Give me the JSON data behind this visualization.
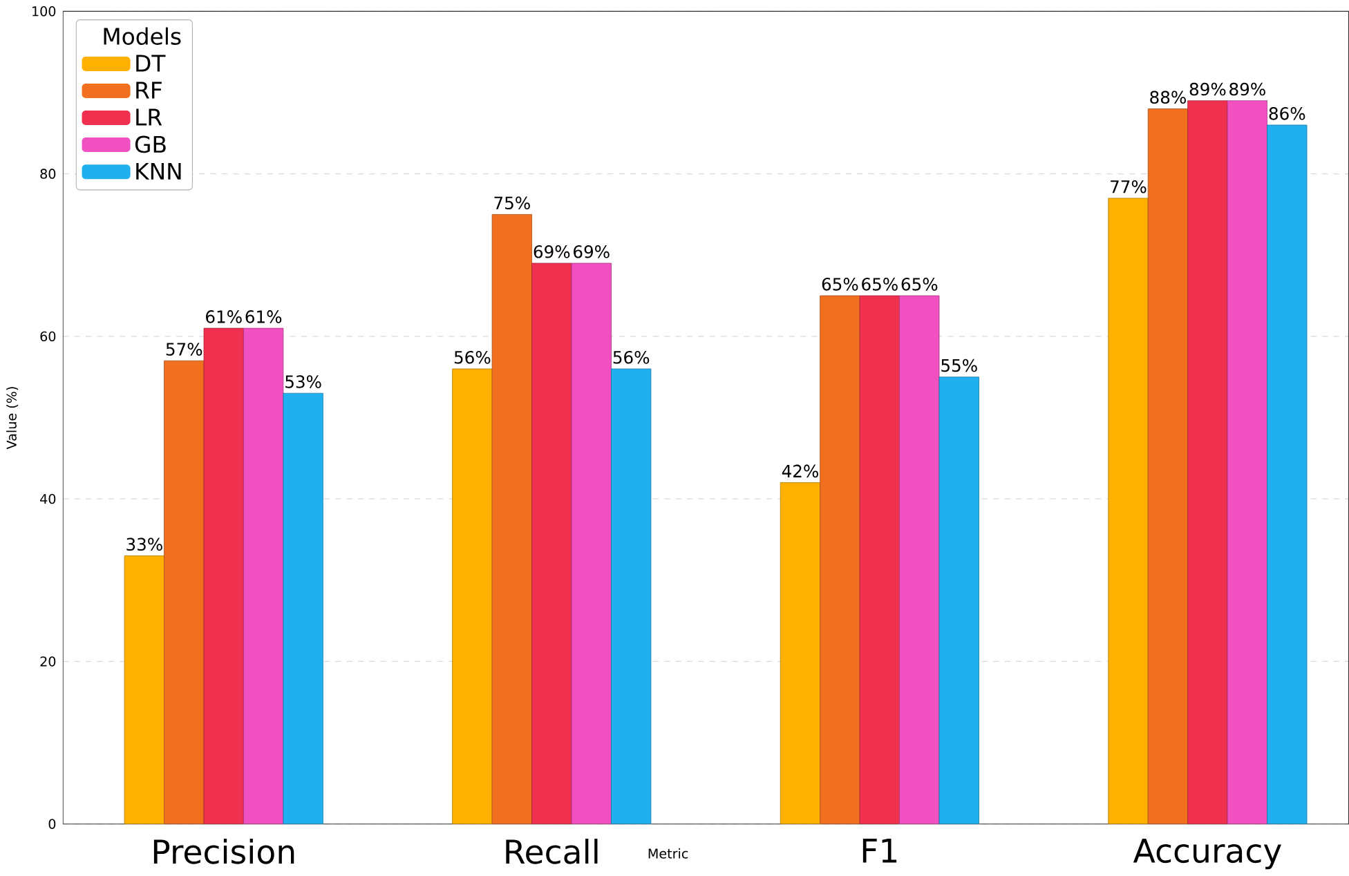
{
  "chart_data": {
    "type": "bar",
    "xlabel": "Metric",
    "ylabel": "Value (%)",
    "legend_title": "Models",
    "legend": "top left",
    "grid": "y",
    "categories": [
      "Precision",
      "Recall",
      "F1",
      "Accuracy"
    ],
    "ylim": [
      0,
      100
    ],
    "yticks": [
      0,
      20,
      40,
      60,
      80,
      100
    ],
    "series": [
      {
        "name": "DT",
        "color": "#ffb000",
        "values": [
          33,
          56,
          42,
          77
        ],
        "value_labels": [
          "33%",
          "56%",
          "42%",
          "77%"
        ]
      },
      {
        "name": "RF",
        "color": "#f07020",
        "values": [
          57,
          75,
          65,
          88
        ],
        "value_labels": [
          "57%",
          "75%",
          "65%",
          "88%"
        ]
      },
      {
        "name": "LR",
        "color": "#f0304f",
        "values": [
          61,
          69,
          65,
          89
        ],
        "value_labels": [
          "61%",
          "69%",
          "65%",
          "89%"
        ]
      },
      {
        "name": "GB",
        "color": "#f050c0",
        "values": [
          61,
          69,
          65,
          89
        ],
        "value_labels": [
          "61%",
          "69%",
          "65%",
          "89%"
        ]
      },
      {
        "name": "KNN",
        "color": "#20b0f0",
        "values": [
          53,
          56,
          55,
          86
        ],
        "value_labels": [
          "53%",
          "56%",
          "55%",
          "86%"
        ]
      }
    ]
  }
}
